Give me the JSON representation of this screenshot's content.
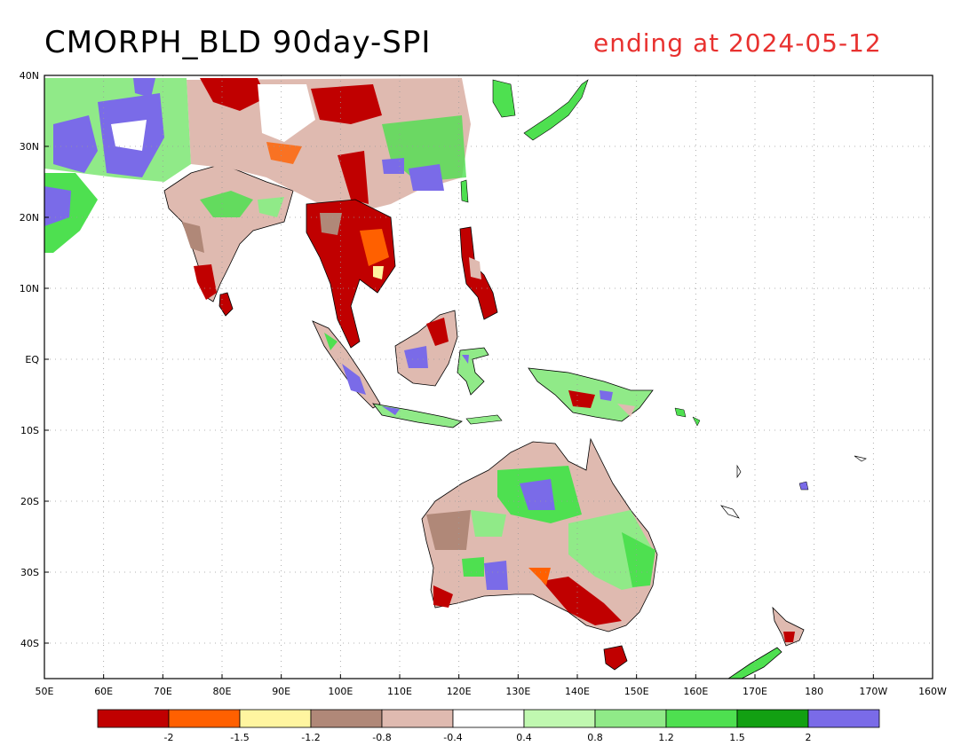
{
  "title": "CMORPH_BLD 90day-SPI",
  "subtitle": "ending at 2024-05-12",
  "map": {
    "lon_labels": [
      "50E",
      "60E",
      "70E",
      "80E",
      "90E",
      "100E",
      "110E",
      "120E",
      "130E",
      "140E",
      "150E",
      "160E",
      "170E",
      "180",
      "170W",
      "160W"
    ],
    "lat_labels": [
      "40N",
      "30N",
      "20N",
      "10N",
      "EQ",
      "10S",
      "20S",
      "30S",
      "40S"
    ],
    "grid": "dotted",
    "extent": {
      "lon_min": 50,
      "lon_max": 200,
      "lat_min": -45,
      "lat_max": 40
    }
  },
  "legend": {
    "colors": [
      "#c00000",
      "#ff6000",
      "#fff5a0",
      "#b08878",
      "#dfbab0",
      "#ffffff",
      "#c0f8b0",
      "#90ea88",
      "#4ee050",
      "#12a012",
      "#7a6be8"
    ],
    "labels": [
      "-2",
      "-1.5",
      "-1.2",
      "-0.8",
      "-0.4",
      "0.4",
      "0.8",
      "1.2",
      "1.5",
      "2"
    ]
  }
}
